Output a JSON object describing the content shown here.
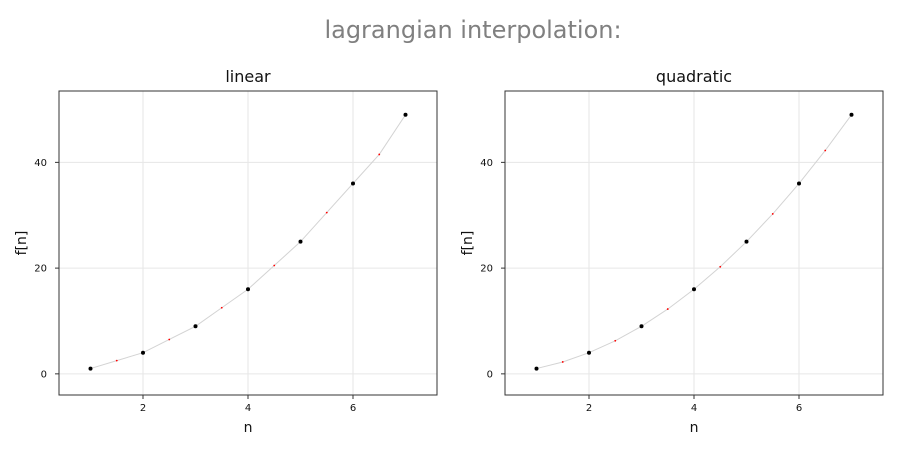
{
  "title": "lagrangian interpolation:",
  "chart_data": [
    {
      "type": "scatter",
      "title": "linear",
      "xlabel": "n",
      "ylabel": "f[n]",
      "xlim": [
        0.4,
        7.6
      ],
      "ylim": [
        -4,
        53.5
      ],
      "xticks": [
        2,
        4,
        6
      ],
      "yticks": [
        0,
        20,
        40
      ],
      "grid": true,
      "series": [
        {
          "x": [
            1,
            2,
            3,
            4,
            5,
            6,
            7
          ],
          "y": [
            1,
            4,
            9,
            16,
            25,
            36,
            49
          ],
          "color": "#000000",
          "marker": "dot"
        },
        {
          "x": [
            1.5,
            2.5,
            3.5,
            4.5,
            5.5,
            6.5
          ],
          "y": [
            2.5,
            6.5,
            12.5,
            20.5,
            30.5,
            41.5
          ],
          "color": "#ff0000",
          "marker": "small-dot"
        },
        {
          "x": [
            1,
            1.5,
            2,
            2.5,
            3,
            3.5,
            4,
            4.5,
            5,
            5.5,
            6,
            6.5,
            7
          ],
          "y": [
            1,
            2.5,
            4,
            6.5,
            9,
            12.5,
            16,
            20.5,
            25,
            30.5,
            36,
            41.5,
            49
          ],
          "color": "#d3d3d3",
          "marker": "line"
        }
      ]
    },
    {
      "type": "scatter",
      "title": "quadratic",
      "xlabel": "n",
      "ylabel": "f[n]",
      "xlim": [
        0.4,
        7.6
      ],
      "ylim": [
        -4,
        53.5
      ],
      "xticks": [
        2,
        4,
        6
      ],
      "yticks": [
        0,
        20,
        40
      ],
      "grid": true,
      "series": [
        {
          "x": [
            1,
            2,
            3,
            4,
            5,
            6,
            7
          ],
          "y": [
            1,
            4,
            9,
            16,
            25,
            36,
            49
          ],
          "color": "#000000",
          "marker": "dot"
        },
        {
          "x": [
            1.5,
            2.5,
            3.5,
            4.5,
            5.5,
            6.5
          ],
          "y": [
            2.25,
            6.25,
            12.25,
            20.25,
            30.25,
            42.25
          ],
          "color": "#ff0000",
          "marker": "small-dot"
        },
        {
          "x": [
            1,
            1.5,
            2,
            2.5,
            3,
            3.5,
            4,
            4.5,
            5,
            5.5,
            6,
            6.5,
            7
          ],
          "y": [
            1,
            2.25,
            4,
            6.25,
            9,
            12.25,
            16,
            20.25,
            25,
            30.25,
            36,
            42.25,
            49
          ],
          "color": "#d3d3d3",
          "marker": "line"
        }
      ]
    }
  ]
}
